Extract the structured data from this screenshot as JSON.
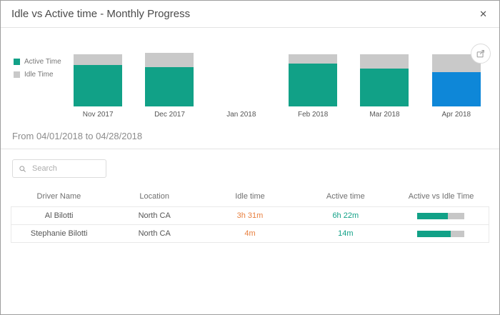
{
  "window": {
    "title": "Idle vs Active time - Monthly Progress",
    "close_icon": "✕"
  },
  "colors": {
    "active": "#11a187",
    "idle": "#c9c9c9",
    "selected": "#0e87d8",
    "idle_text": "#e87f3e",
    "active_text": "#11a187",
    "track": "#c7c7c7"
  },
  "chart_data": {
    "type": "bar",
    "stacked": true,
    "title": "Idle vs Active time - Monthly Progress",
    "categories": [
      "Nov 2017",
      "Dec 2017",
      "Jan 2018",
      "Feb 2018",
      "Mar 2018",
      "Apr 2018"
    ],
    "series": [
      {
        "name": "Active Time",
        "values": [
          58,
          55,
          0,
          60,
          53,
          48
        ]
      },
      {
        "name": "Idle Time",
        "values": [
          15,
          20,
          0,
          13,
          20,
          25
        ]
      }
    ],
    "selected_category": "Apr 2018",
    "selected_index": 5,
    "legend_position": "left",
    "ylabel": "",
    "xlabel": ""
  },
  "filter": {
    "range_label": "From 04/01/2018 to 04/28/2018"
  },
  "search": {
    "placeholder": "Search"
  },
  "table": {
    "headers": [
      "Driver Name",
      "Location",
      "Idle time",
      "Active time",
      "Active vs Idle Time"
    ],
    "rows": [
      {
        "driver": "Al Bilotti",
        "location": "North CA",
        "idle_time": "3h 31m",
        "active_time": "6h 22m",
        "active_pct": 64
      },
      {
        "driver": "Stephanie Bilotti",
        "location": "North CA",
        "idle_time": "4m",
        "active_time": "14m",
        "active_pct": 70
      }
    ]
  }
}
